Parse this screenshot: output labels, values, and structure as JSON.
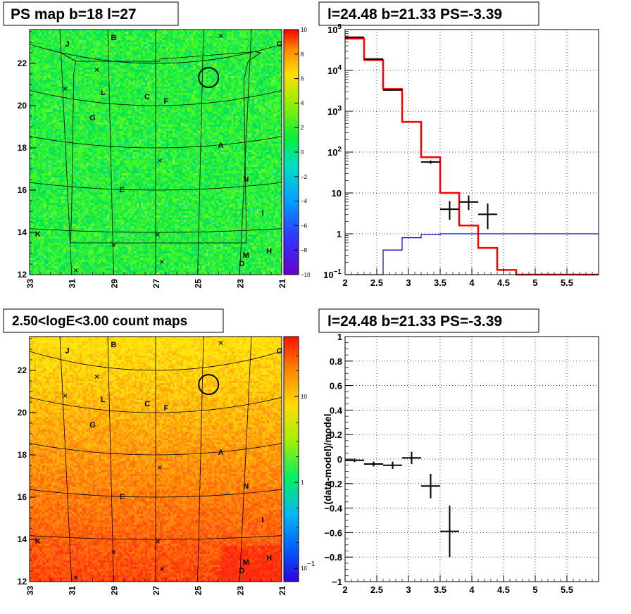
{
  "colors": {
    "axis": "#000000",
    "frame": "#000000",
    "grid": "#000000",
    "data": "#000000",
    "model": "#ff0000",
    "background_model": "#0000cc",
    "map_low": "#ff3300",
    "map_high": "#00ee44"
  },
  "panels": {
    "ps_map": {
      "title": "PS map b=18 l=27",
      "x_ticks": [
        "33",
        "31",
        "29",
        "27",
        "25",
        "23",
        "21"
      ],
      "y_ticks": [
        "12",
        "14",
        "16",
        "18",
        "20",
        "22"
      ],
      "colorbar_ticks": [
        "10",
        "8",
        "6",
        "4",
        "2",
        "0",
        "−2",
        "−4",
        "−6",
        "−8",
        "−10"
      ],
      "source_labels": [
        "J",
        "B",
        "O",
        "L",
        "C",
        "F",
        "G",
        "A",
        "N",
        "E",
        "I",
        "K",
        "H",
        "M",
        "D"
      ]
    },
    "spectrum": {
      "title": "l=24.48 b=21.33 PS=-3.39",
      "x_ticks": [
        "2",
        "2.5",
        "3",
        "3.5",
        "4",
        "4.5",
        "5",
        "5.5"
      ],
      "y_ticks": [
        "10^5",
        "10^4",
        "10^3",
        "10^2",
        "10",
        "1",
        "10^-1"
      ]
    },
    "count_map": {
      "title": "2.50<logE<3.00 count maps",
      "x_ticks": [
        "33",
        "31",
        "29",
        "27",
        "25",
        "23",
        "21"
      ],
      "y_ticks": [
        "12",
        "14",
        "16",
        "18",
        "20",
        "22"
      ],
      "colorbar_ticks": [
        "10",
        "1",
        "10^-1"
      ],
      "source_labels": [
        "J",
        "B",
        "O",
        "L",
        "C",
        "F",
        "G",
        "A",
        "N",
        "E",
        "I",
        "K",
        "H",
        "M",
        "D"
      ]
    },
    "residual": {
      "title": "l=24.48 b=21.33 PS=-3.39",
      "ylabel": "(data-model)/model",
      "x_ticks": [
        "2",
        "2.5",
        "3",
        "3.5",
        "4",
        "4.5",
        "5",
        "5.5"
      ],
      "y_ticks": [
        "1",
        "0.8",
        "0.6",
        "0.4",
        "0.2",
        "0",
        "−0.2",
        "−0.4",
        "−0.6",
        "−0.8",
        "−1"
      ]
    }
  },
  "chart_data": [
    {
      "type": "heatmap",
      "title": "PS map b=18 l=27",
      "xlim": [
        33,
        21
      ],
      "ylim": [
        12,
        23.6
      ],
      "zlim": [
        -10,
        10
      ],
      "colorscale": "rainbow",
      "circle": {
        "l": 24.48,
        "b": 21.33
      },
      "sources": [
        {
          "label": "J",
          "l": 31.2,
          "b": 22.8
        },
        {
          "label": "B",
          "l": 29.0,
          "b": 23.1
        },
        {
          "label": "O",
          "l": 21.1,
          "b": 22.8
        },
        {
          "label": "L",
          "l": 29.5,
          "b": 20.5
        },
        {
          "label": "C",
          "l": 27.4,
          "b": 20.3
        },
        {
          "label": "F",
          "l": 26.5,
          "b": 20.1
        },
        {
          "label": "G",
          "l": 30.0,
          "b": 19.3
        },
        {
          "label": "A",
          "l": 23.9,
          "b": 18.0
        },
        {
          "label": "N",
          "l": 22.7,
          "b": 16.4
        },
        {
          "label": "E",
          "l": 28.6,
          "b": 15.9
        },
        {
          "label": "I",
          "l": 21.9,
          "b": 14.8
        },
        {
          "label": "K",
          "l": 32.6,
          "b": 13.8
        },
        {
          "label": "H",
          "l": 21.6,
          "b": 13.0
        },
        {
          "label": "M",
          "l": 22.7,
          "b": 12.8
        },
        {
          "label": "D",
          "l": 22.9,
          "b": 12.4
        }
      ],
      "crosses": [
        {
          "l": 23.9,
          "b": 23.3
        },
        {
          "l": 29.8,
          "b": 21.7
        },
        {
          "l": 31.3,
          "b": 20.8
        },
        {
          "l": 26.8,
          "b": 17.4
        },
        {
          "l": 26.9,
          "b": 13.9
        },
        {
          "l": 29.0,
          "b": 13.4
        },
        {
          "l": 26.7,
          "b": 12.6
        },
        {
          "l": 30.8,
          "b": 12.2
        }
      ]
    },
    {
      "type": "line",
      "title": "l=24.48 b=21.33 PS=-3.39",
      "xlim": [
        2,
        6
      ],
      "ylim": [
        0.1,
        100000
      ],
      "yscale": "log",
      "grid": true,
      "series": [
        {
          "kind": "histogram",
          "color": "#ff0000",
          "edges": [
            2,
            2.3,
            2.6,
            2.9,
            3.2,
            3.5,
            3.8,
            4.1,
            4.4,
            4.7,
            6
          ],
          "values": [
            60000,
            18000,
            3500,
            550,
            75,
            10,
            1.6,
            0.45,
            0.13,
            0.1
          ]
        },
        {
          "kind": "histogram",
          "color": "#0000cc",
          "edges": [
            2,
            2.3,
            2.6,
            2.9,
            3.2,
            3.5,
            3.8,
            4.1,
            4.4,
            4.7,
            6
          ],
          "values": [
            0.1,
            0.1,
            0.4,
            0.8,
            0.95,
            1.0,
            1.0,
            1.0,
            1.0,
            1.0
          ]
        },
        {
          "kind": "points",
          "color": "#000000",
          "x": [
            2.15,
            2.45,
            2.75,
            3.35,
            3.65,
            3.95,
            4.25
          ],
          "y": [
            65000,
            19000,
            3300,
            57,
            4,
            6,
            3
          ],
          "ylo": [
            64000,
            18700,
            3200,
            52,
            2.2,
            3.8,
            1.3
          ],
          "yhi": [
            66000,
            19300,
            3400,
            62,
            6.3,
            8.7,
            5.5
          ],
          "xerr": 0.15
        }
      ]
    },
    {
      "type": "heatmap",
      "title": "2.50<logE<3.00 count maps",
      "xlim": [
        33,
        21
      ],
      "ylim": [
        12,
        23.6
      ],
      "zlim": [
        0.07,
        50
      ],
      "zscale": "log",
      "colorscale": "rainbow"
    },
    {
      "type": "scatter",
      "title": "l=24.48 b=21.33 PS=-3.39",
      "ylabel": "(data-model)/model",
      "xlim": [
        2,
        6
      ],
      "ylim": [
        -1,
        1
      ],
      "grid": true,
      "series": [
        {
          "color": "#000000",
          "x": [
            2.15,
            2.45,
            2.75,
            3.05,
            3.35,
            3.65
          ],
          "y": [
            -0.01,
            -0.04,
            -0.05,
            0.01,
            -0.22,
            -0.59
          ],
          "yerr": [
            0.015,
            0.02,
            0.03,
            0.05,
            0.1,
            0.21
          ],
          "xerr": 0.15
        }
      ]
    }
  ]
}
